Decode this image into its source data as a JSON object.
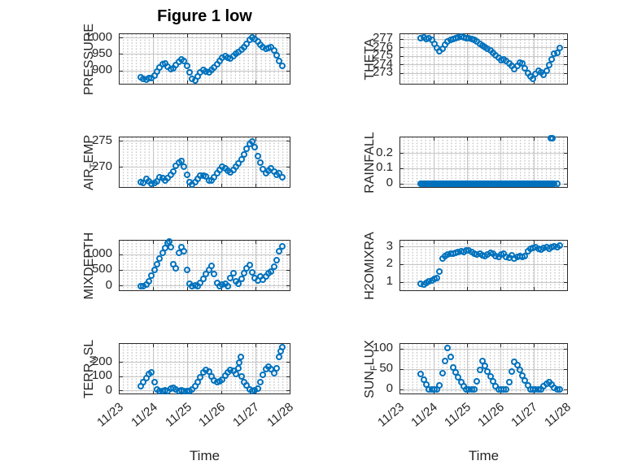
{
  "title": "Figure 1 low",
  "xlabel": "Time",
  "colors": {
    "marker": "#0072BD",
    "axis": "#2b2b2b",
    "grid_major": "#c6c6c6",
    "text": "#262626"
  },
  "x_axis": {
    "lim": [
      0,
      5
    ],
    "major_ticks": [
      0,
      1,
      2,
      3,
      4,
      5
    ],
    "tick_labels": [
      "11/23",
      "11/24",
      "11/25",
      "11/26",
      "11/27",
      "11/28"
    ]
  },
  "t": [
    0.62,
    0.7,
    0.78,
    0.86,
    0.94,
    1.02,
    1.1,
    1.18,
    1.26,
    1.34,
    1.42,
    1.5,
    1.58,
    1.66,
    1.74,
    1.82,
    1.9,
    1.98,
    2.06,
    2.14,
    2.22,
    2.3,
    2.38,
    2.46,
    2.54,
    2.62,
    2.7,
    2.78,
    2.86,
    2.94,
    3.02,
    3.1,
    3.18,
    3.26,
    3.34,
    3.42,
    3.5,
    3.58,
    3.66,
    3.74,
    3.82,
    3.9,
    3.98,
    4.06,
    4.14,
    4.22,
    4.3,
    4.38,
    4.46,
    4.54,
    4.62,
    4.7,
    4.78
  ],
  "chart_data": [
    {
      "type": "scatter",
      "name": "pressure",
      "marker": "open-circle",
      "ylabel": {
        "pre": "PRESSURE",
        "sub": "",
        "post": ""
      },
      "yticks": [
        900,
        950,
        1000
      ],
      "ylim": [
        862,
        1011
      ],
      "v": [
        881,
        877,
        875,
        880,
        878,
        886,
        898,
        910,
        920,
        922,
        913,
        905,
        908,
        917,
        929,
        936,
        931,
        916,
        896,
        876,
        872,
        884,
        897,
        904,
        899,
        897,
        903,
        911,
        920,
        930,
        939,
        945,
        941,
        937,
        944,
        952,
        958,
        965,
        972,
        981,
        994,
        1002,
        997,
        988,
        980,
        973,
        968,
        970,
        972,
        962,
        948,
        930,
        916
      ]
    },
    {
      "type": "scatter",
      "name": "theta",
      "marker": "open-circle",
      "ylabel": {
        "pre": "THETA",
        "sub": "",
        "post": ""
      },
      "yticks": [
        273,
        274,
        275,
        276,
        277
      ],
      "ylim": [
        271.8,
        277.6
      ],
      "v": [
        277.1,
        277.2,
        277.0,
        277.1,
        276.9,
        276.5,
        276.0,
        275.6,
        275.9,
        276.4,
        276.7,
        276.9,
        277.0,
        277.1,
        277.2,
        277.3,
        277.2,
        277.1,
        277.1,
        277.0,
        276.9,
        276.7,
        276.5,
        276.3,
        276.1,
        275.9,
        275.7,
        275.4,
        275.1,
        274.8,
        274.6,
        274.7,
        274.5,
        274.2,
        273.9,
        273.5,
        273.9,
        274.3,
        274.2,
        273.6,
        273.0,
        272.7,
        272.4,
        272.9,
        273.3,
        273.1,
        272.8,
        273.3,
        274.0,
        274.7,
        275.3,
        275.4,
        276.0
      ]
    },
    {
      "type": "scatter",
      "name": "air_temp",
      "marker": "open-circle",
      "ylabel": {
        "pre": "AIR",
        "sub": "T",
        "post": "EMP"
      },
      "yticks": [
        270,
        275
      ],
      "ylim": [
        266.3,
        275.7
      ],
      "v": [
        267.3,
        267.1,
        267.8,
        267.4,
        266.9,
        267.0,
        267.4,
        268.2,
        268.0,
        267.6,
        268.0,
        268.6,
        269.3,
        270.3,
        271.0,
        271.2,
        270.2,
        268.6,
        267.3,
        266.8,
        267.2,
        267.9,
        268.4,
        268.5,
        268.3,
        267.6,
        267.5,
        268.1,
        268.9,
        269.6,
        270.2,
        269.8,
        269.4,
        269.0,
        269.5,
        270.1,
        270.8,
        271.6,
        272.5,
        273.5,
        274.5,
        275.0,
        273.8,
        272.2,
        271.0,
        269.7,
        268.9,
        269.4,
        269.8,
        269.3,
        268.6,
        268.9,
        268.2
      ]
    },
    {
      "type": "scatter",
      "name": "rainfall",
      "marker": "open-circle",
      "ylabel": {
        "pre": "RAINFALL",
        "sub": "",
        "post": ""
      },
      "yticks": [
        0,
        0.1,
        0.2
      ],
      "ylim": [
        -0.02,
        0.305
      ],
      "runs": [
        {
          "t0": 0.62,
          "t1": 4.62,
          "dt": 0.04,
          "v": 0
        }
      ],
      "extra": [
        [
          4.5,
          0.3
        ],
        [
          4.56,
          0.3
        ],
        [
          4.7,
          0
        ]
      ]
    },
    {
      "type": "scatter",
      "name": "mixdepth",
      "marker": "open-circle",
      "ylabel": {
        "pre": "MIXDEPTH",
        "sub": "",
        "post": ""
      },
      "yticks": [
        0,
        500,
        1000
      ],
      "ylim": [
        -140,
        1450
      ],
      "v": [
        0,
        0,
        30,
        150,
        330,
        520,
        700,
        880,
        1050,
        1220,
        1380,
        1250,
        700,
        560,
        1050,
        1250,
        1100,
        500,
        60,
        0,
        20,
        0,
        100,
        230,
        380,
        520,
        650,
        380,
        100,
        0,
        30,
        60,
        0,
        250,
        400,
        150,
        60,
        220,
        400,
        560,
        680,
        430,
        260,
        160,
        310,
        210,
        310,
        410,
        460,
        620,
        820,
        1100,
        1280
      ],
      "extra": [
        [
          1.46,
          1420
        ]
      ]
    },
    {
      "type": "scatter",
      "name": "h2omixra",
      "marker": "open-circle",
      "ylabel": {
        "pre": "H2OMIXRA",
        "sub": "",
        "post": ""
      },
      "yticks": [
        1,
        2,
        3
      ],
      "ylim": [
        0.55,
        3.35
      ],
      "v": [
        0.92,
        0.85,
        0.95,
        1.05,
        1.12,
        1.18,
        1.25,
        1.62,
        2.35,
        2.5,
        2.55,
        2.6,
        2.62,
        2.68,
        2.72,
        2.75,
        2.7,
        2.78,
        2.8,
        2.7,
        2.6,
        2.55,
        2.6,
        2.52,
        2.48,
        2.55,
        2.65,
        2.6,
        2.5,
        2.45,
        2.55,
        2.62,
        2.45,
        2.4,
        2.52,
        2.35,
        2.42,
        2.5,
        2.45,
        2.5,
        2.75,
        2.9,
        2.95,
        3.0,
        2.9,
        2.85,
        2.95,
        3.0,
        2.9,
        3.0,
        3.05,
        3.0,
        3.08
      ]
    },
    {
      "type": "scatter",
      "name": "terr_msl",
      "marker": "open-circle",
      "ylabel": {
        "pre": "TERR",
        "sub": "M",
        "post": "SL"
      },
      "yticks": [
        0,
        100,
        200
      ],
      "ylim": [
        -20,
        330
      ],
      "v": [
        30,
        60,
        90,
        120,
        130,
        60,
        10,
        0,
        0,
        5,
        0,
        15,
        20,
        10,
        0,
        5,
        0,
        0,
        0,
        10,
        30,
        60,
        95,
        130,
        148,
        135,
        100,
        72,
        62,
        65,
        80,
        105,
        130,
        148,
        140,
        120,
        160,
        100,
        60,
        35,
        10,
        0,
        5,
        15,
        60,
        110,
        150,
        170,
        150,
        125,
        160,
        240,
        310
      ],
      "extra": [
        [
          3.52,
          200
        ],
        [
          3.56,
          238
        ],
        [
          4.74,
          280
        ]
      ]
    },
    {
      "type": "scatter",
      "name": "sun_flux",
      "marker": "open-circle",
      "ylabel": {
        "pre": "SUN",
        "sub": "F",
        "post": "LUX"
      },
      "yticks": [
        0,
        50,
        100
      ],
      "ylim": [
        -10,
        112
      ],
      "v": [
        38,
        25,
        12,
        0,
        0,
        0,
        0,
        10,
        40,
        70,
        103,
        80,
        55,
        42,
        30,
        18,
        8,
        0,
        0,
        0,
        0,
        20,
        48,
        70,
        58,
        45,
        32,
        20,
        8,
        0,
        0,
        0,
        0,
        18,
        45,
        68,
        60,
        48,
        35,
        22,
        10,
        0,
        0,
        0,
        0,
        0,
        8,
        15,
        18,
        12,
        5,
        0,
        0
      ]
    }
  ]
}
